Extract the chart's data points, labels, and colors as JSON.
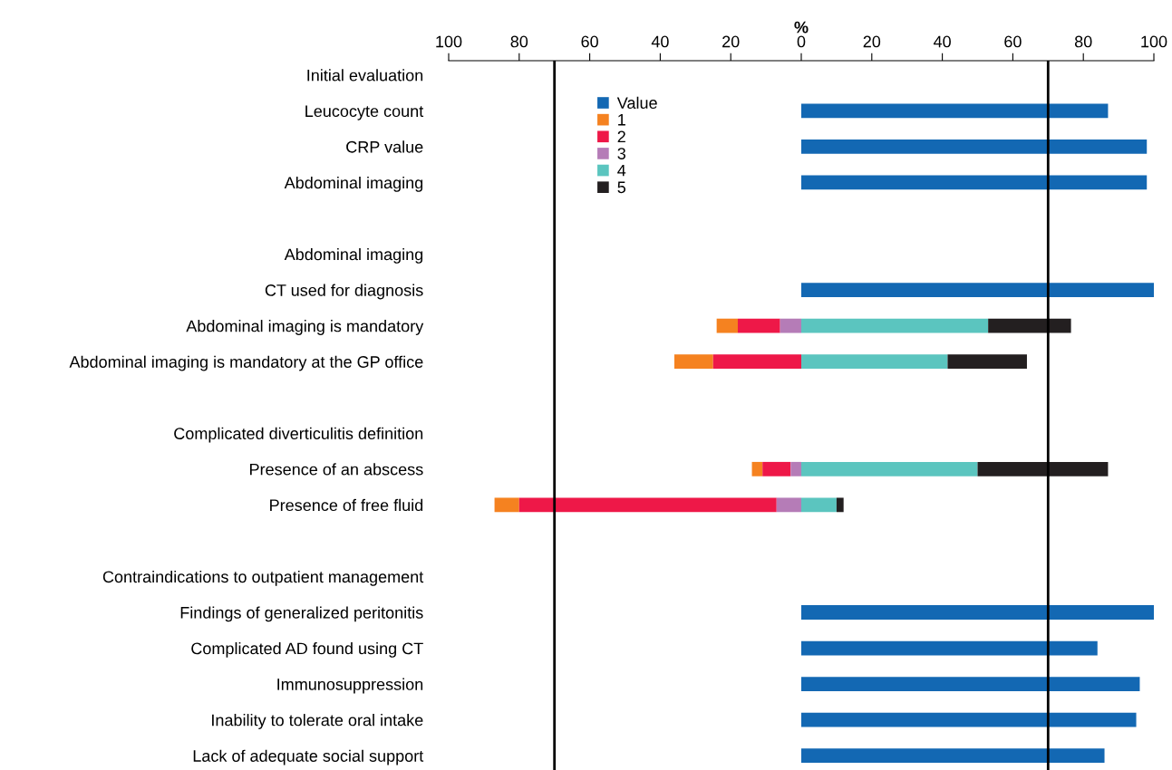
{
  "chart_data": {
    "type": "bar",
    "orientation": "horizontal",
    "xlabel": "%",
    "categories": [
      "Initial evaluation",
      "Leucocyte count",
      "CRP value",
      "Abdominal imaging",
      null,
      "Abdominal imaging",
      "CT used for diagnosis",
      "Abdominal imaging is mandatory",
      "Abdominal imaging is mandatory at the GP office",
      null,
      "Complicated diverticulitis definition",
      "Presence of an abscess",
      "Presence of free fluid",
      null,
      "Contraindications to outpatient management",
      "Findings of generalized peritonitis",
      "Complicated AD found using CT",
      "Immunosuppression",
      "Inability to tolerate oral intake",
      "Lack of adequate social support"
    ],
    "series": [
      {
        "name": "Value",
        "color": "#1368b3",
        "values": [
          null,
          87,
          98,
          98,
          null,
          null,
          100,
          null,
          null,
          null,
          null,
          null,
          null,
          null,
          null,
          100,
          84,
          96,
          95,
          86
        ]
      },
      {
        "name": "1",
        "color": "#f58220",
        "values": [
          null,
          null,
          null,
          null,
          null,
          null,
          null,
          6,
          11,
          null,
          null,
          3,
          7,
          null,
          null,
          null,
          null,
          null,
          null,
          null
        ],
        "base": [
          null,
          null,
          null,
          null,
          null,
          null,
          null,
          -24,
          -36,
          null,
          null,
          -14,
          -87,
          null,
          null,
          null,
          null,
          null,
          null,
          null
        ]
      },
      {
        "name": "2",
        "color": "#ee1848",
        "values": [
          null,
          null,
          null,
          null,
          null,
          null,
          null,
          12,
          25,
          null,
          null,
          8,
          73,
          null,
          null,
          null,
          null,
          null,
          null,
          null
        ],
        "base": [
          null,
          null,
          null,
          null,
          null,
          null,
          null,
          -18,
          -25,
          null,
          null,
          -11,
          -80,
          null,
          null,
          null,
          null,
          null,
          null,
          null
        ]
      },
      {
        "name": "3",
        "color": "#b57cb7",
        "values": [
          null,
          null,
          null,
          null,
          null,
          null,
          null,
          6,
          null,
          null,
          null,
          3,
          7,
          null,
          null,
          null,
          null,
          null,
          null,
          null
        ],
        "base": [
          null,
          null,
          null,
          null,
          null,
          null,
          null,
          -6,
          null,
          null,
          null,
          -3,
          -7,
          null,
          null,
          null,
          null,
          null,
          null,
          null
        ]
      },
      {
        "name": "4",
        "color": "#5bc5bf",
        "values": [
          null,
          null,
          null,
          null,
          null,
          null,
          null,
          53,
          41.5,
          null,
          null,
          50,
          10,
          null,
          null,
          null,
          null,
          null,
          null,
          null
        ],
        "base": [
          null,
          null,
          null,
          null,
          null,
          null,
          null,
          0,
          0,
          null,
          null,
          0,
          0,
          null,
          null,
          null,
          null,
          null,
          null,
          null
        ]
      },
      {
        "name": "5",
        "color": "#231f20",
        "values": [
          null,
          null,
          null,
          null,
          null,
          null,
          null,
          23.5,
          22.5,
          null,
          null,
          37,
          2,
          null,
          null,
          null,
          null,
          null,
          null,
          null
        ],
        "base": [
          null,
          null,
          null,
          null,
          null,
          null,
          null,
          53,
          41.5,
          null,
          null,
          50,
          10,
          null,
          null,
          null,
          null,
          null,
          null,
          null
        ]
      }
    ],
    "xlim": [
      -100,
      100
    ],
    "xticks": [
      {
        "value": -100,
        "label": "100"
      },
      {
        "value": -80,
        "label": "80"
      },
      {
        "value": -60,
        "label": "60"
      },
      {
        "value": -40,
        "label": "40"
      },
      {
        "value": -20,
        "label": "20"
      },
      0,
      20,
      40,
      60,
      80,
      100
    ],
    "ref_lines": [
      {
        "axis": "x",
        "value": -70,
        "color": "#000000"
      },
      {
        "axis": "x",
        "value": 70,
        "color": "#000000"
      }
    ],
    "legend": "top left",
    "grid": false
  }
}
